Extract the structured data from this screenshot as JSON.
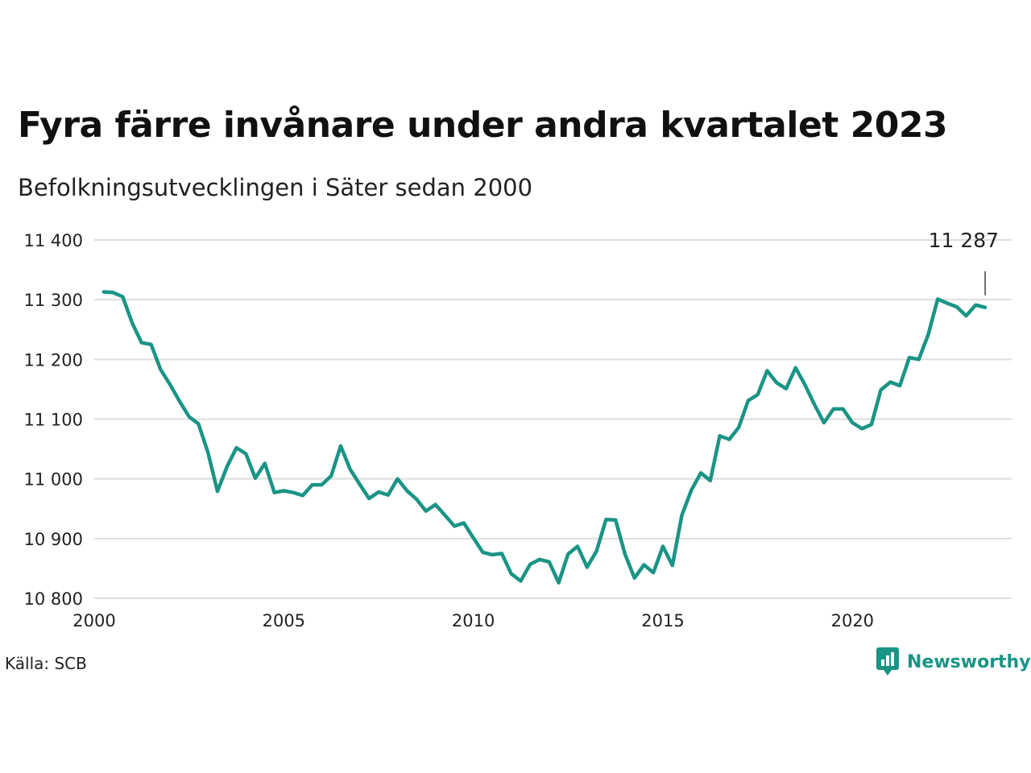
{
  "title": "Fyra färre invånare under andra kvartalet 2023",
  "subtitle": "Befolkningsutvecklingen i Säter sedan 2000",
  "source": "Källa: SCB",
  "brand": "Newsworthy",
  "colors": {
    "line": "#1a9485",
    "grid": "#dddddd",
    "text": "#222222",
    "brand": "#1a9485"
  },
  "chart_data": {
    "type": "line",
    "title": "Fyra färre invånare under andra kvartalet 2023",
    "subtitle": "Befolkningsutvecklingen i Säter sedan 2000",
    "xlabel": "",
    "ylabel": "",
    "xlim": [
      2000,
      2024.2
    ],
    "ylim": [
      10800,
      11400
    ],
    "x_ticks": [
      2000,
      2005,
      2010,
      2015,
      2020
    ],
    "x_tick_labels": [
      "2000",
      "2005",
      "2010",
      "2015",
      "2020"
    ],
    "y_ticks": [
      10800,
      10900,
      11000,
      11100,
      11200,
      11300,
      11400
    ],
    "y_tick_labels": [
      "10 800",
      "10 900",
      "11 000",
      "11 100",
      "11 200",
      "11 300",
      "11 400"
    ],
    "grid": "horizontal",
    "legend": "none",
    "annotation": {
      "label": "11 287",
      "x": 2023.5,
      "y": 11287
    },
    "series": [
      {
        "color": "#1a9485",
        "x": [
          2000.25,
          2000.5,
          2000.75,
          2001.0,
          2001.25,
          2001.5,
          2001.75,
          2002.0,
          2002.25,
          2002.5,
          2002.75,
          2003.0,
          2003.25,
          2003.5,
          2003.75,
          2004.0,
          2004.25,
          2004.5,
          2004.75,
          2005.0,
          2005.25,
          2005.5,
          2005.75,
          2006.0,
          2006.25,
          2006.5,
          2006.75,
          2007.0,
          2007.25,
          2007.5,
          2007.75,
          2008.0,
          2008.25,
          2008.5,
          2008.75,
          2009.0,
          2009.25,
          2009.5,
          2009.75,
          2010.0,
          2010.25,
          2010.5,
          2010.75,
          2011.0,
          2011.25,
          2011.5,
          2011.75,
          2012.0,
          2012.25,
          2012.5,
          2012.75,
          2013.0,
          2013.25,
          2013.5,
          2013.75,
          2014.0,
          2014.25,
          2014.5,
          2014.75,
          2015.0,
          2015.25,
          2015.5,
          2015.75,
          2016.0,
          2016.25,
          2016.5,
          2016.75,
          2017.0,
          2017.25,
          2017.5,
          2017.75,
          2018.0,
          2018.25,
          2018.5,
          2018.75,
          2019.0,
          2019.25,
          2019.5,
          2019.75,
          2020.0,
          2020.25,
          2020.5,
          2020.75,
          2021.0,
          2021.25,
          2021.5,
          2021.75,
          2022.0,
          2022.25,
          2022.5,
          2022.75,
          2023.0,
          2023.25,
          2023.5
        ],
        "y": [
          11313,
          11312,
          11305,
          11261,
          11228,
          11225,
          11183,
          11158,
          11130,
          11104,
          11092,
          11044,
          10979,
          11020,
          11052,
          11042,
          11001,
          11026,
          10977,
          10980,
          10977,
          10972,
          10990,
          10990,
          11005,
          11055,
          11016,
          10991,
          10967,
          10978,
          10973,
          11000,
          10980,
          10966,
          10946,
          10957,
          10939,
          10921,
          10926,
          10901,
          10877,
          10873,
          10875,
          10841,
          10829,
          10857,
          10865,
          10861,
          10826,
          10874,
          10887,
          10852,
          10879,
          10932,
          10931,
          10874,
          10834,
          10856,
          10843,
          10887,
          10855,
          10939,
          10981,
          11010,
          10997,
          11072,
          11066,
          11086,
          11131,
          11141,
          11181,
          11161,
          11151,
          11186,
          11157,
          11124,
          11094,
          11117,
          11117,
          11094,
          11084,
          11091,
          11149,
          11162,
          11156,
          11203,
          11200,
          11242,
          11301,
          11294,
          11288,
          11273,
          11291,
          11287
        ]
      }
    ]
  }
}
